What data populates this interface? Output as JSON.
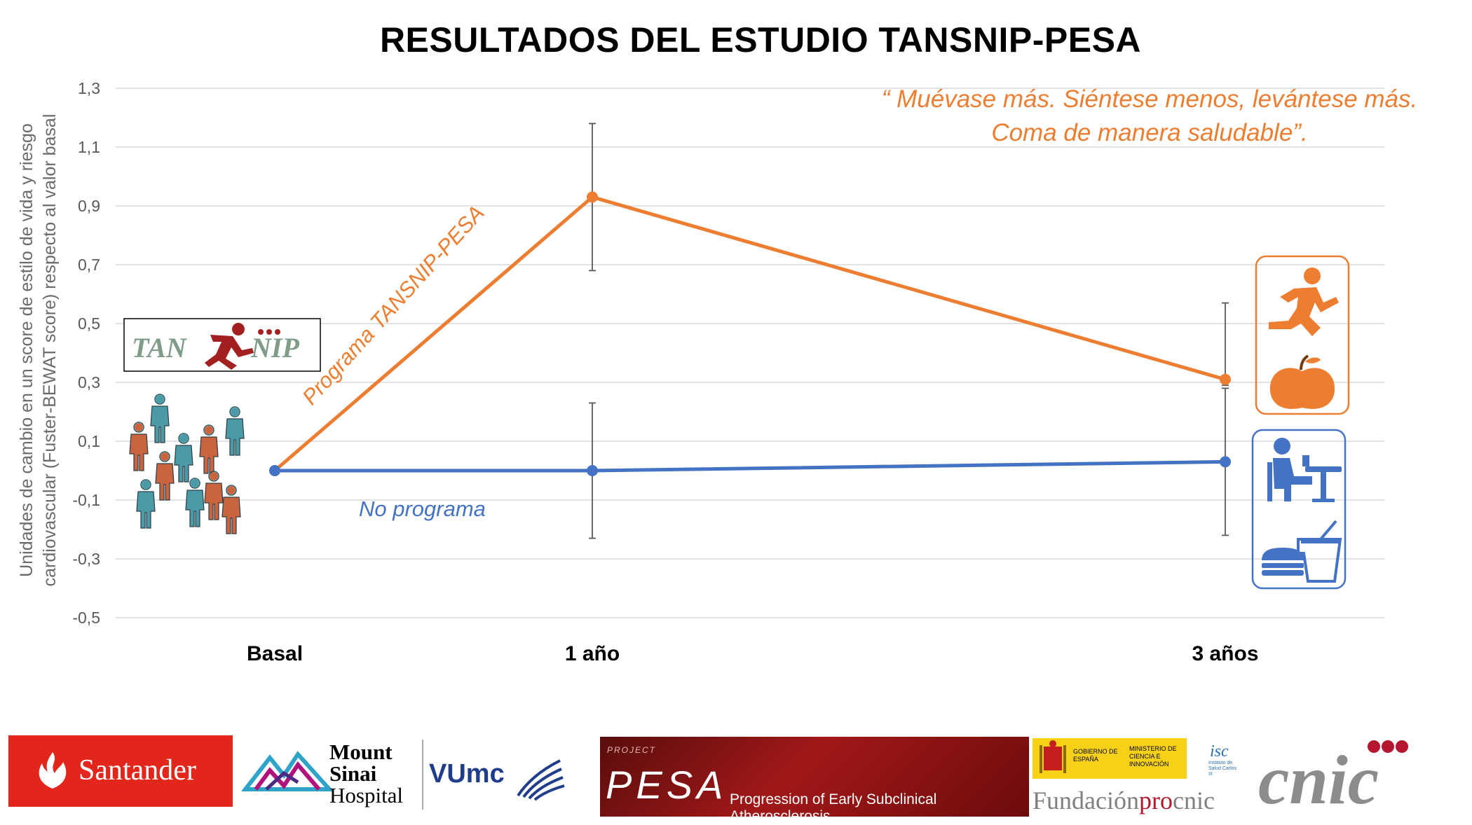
{
  "title": "RESULTADOS DEL ESTUDIO TANSNIP-PESA",
  "quote": "“ Muévase más. Siéntese menos, levántese más. Coma de manera saludable”.",
  "colors": {
    "orange": "#ED7D31",
    "blue": "#4472C4",
    "grid": "#d9d9d9",
    "axis_text": "#595959"
  },
  "chart_data": {
    "type": "line",
    "title": "RESULTADOS DEL ESTUDIO TANSNIP-PESA",
    "ylabel": "Unidades de cambio en un score de estilo de vida y riesgo cardiovascular (Fuster-BEWAT score) respecto al valor basal",
    "xlabel": "",
    "categories": [
      "Basal",
      "1 año",
      "3 años"
    ],
    "ylim": [
      -0.5,
      1.3
    ],
    "yticks": [
      "-0,5",
      "-0,3",
      "-0,1",
      "0,1",
      "0,3",
      "0,5",
      "0,7",
      "0,9",
      "1,1",
      "1,3"
    ],
    "ytick_values": [
      -0.5,
      -0.3,
      -0.1,
      0.1,
      0.3,
      0.5,
      0.7,
      0.9,
      1.1,
      1.3
    ],
    "grid": true,
    "series": [
      {
        "name": "Programa TANSNIP-PESA",
        "color": "#ED7D31",
        "values": [
          0.0,
          0.93,
          0.31
        ],
        "err_low": [
          null,
          0.68,
          0.29
        ],
        "err_high": [
          null,
          1.18,
          0.57
        ]
      },
      {
        "name": "No programa",
        "color": "#4472C4",
        "values": [
          0.0,
          0.0,
          0.03
        ],
        "err_low": [
          null,
          -0.23,
          -0.22
        ],
        "err_high": [
          null,
          0.23,
          0.28
        ]
      }
    ]
  },
  "icons": {
    "people": "people-group-icon",
    "running": "running-person-icon",
    "apple": "apple-icon",
    "sitting": "person-at-desk-icon",
    "fastfood": "fast-food-icon"
  },
  "tansnip_logo_text": {
    "left": "TAN",
    "right": "NIP"
  },
  "logos": {
    "santander": "Santander",
    "mount_sinai_1": "Mount",
    "mount_sinai_2": "Sinai",
    "mount_sinai_3": "Hospital",
    "vumc": "VUmc",
    "pesa_project": "PROJECT",
    "pesa": "PESA",
    "pesa_sub": "Progression of Early Subclinical Atherosclerosis",
    "gobierno": "GOBIERNO DE ESPAÑA",
    "ministerio": "MINISTERIO DE CIENCIA E INNOVACIÓN",
    "isciii": "Instituto de Salud Carlos III",
    "fundacion": "Fundación",
    "fundacion_pro": "pro",
    "fundacion_cnic": "cnic",
    "cnic": "cnic"
  }
}
